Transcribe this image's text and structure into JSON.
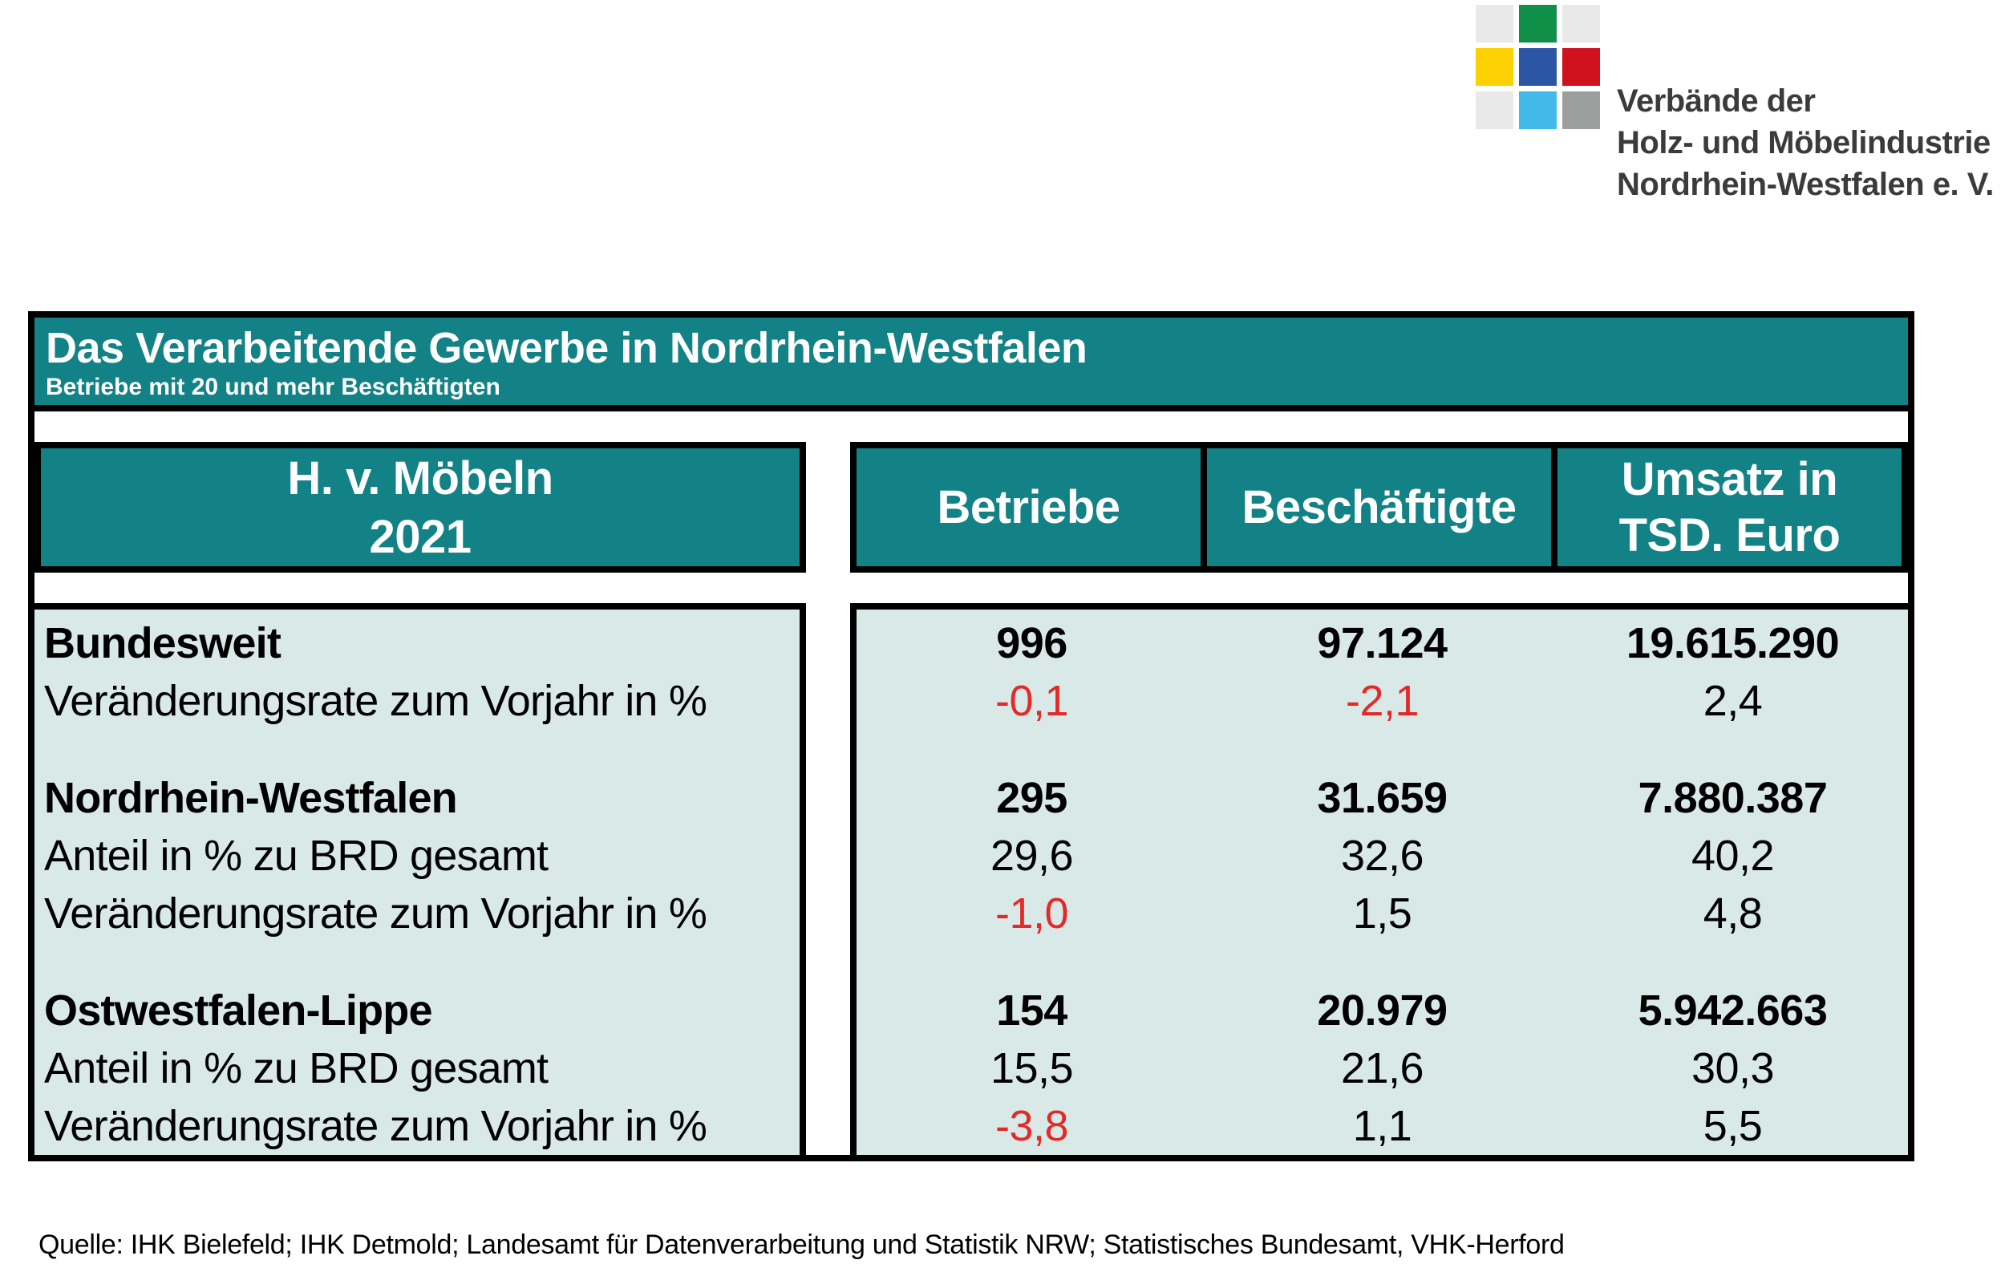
{
  "theme": {
    "teal": "#128286",
    "mint": "#d9e9e8",
    "negative_red": "#e32a26",
    "border_black": "#000000",
    "logo_text_color": "#3b3b3a"
  },
  "logo": {
    "squares": [
      {
        "name": "light-gray",
        "color": "#e9e9e9"
      },
      {
        "name": "green",
        "color": "#0f8f47"
      },
      {
        "name": "light-gray",
        "color": "#e9e9e9"
      },
      {
        "name": "yellow",
        "color": "#fdd101"
      },
      {
        "name": "blue",
        "color": "#2c56a5"
      },
      {
        "name": "red",
        "color": "#d2111f"
      },
      {
        "name": "light-gray",
        "color": "#e9e9e9"
      },
      {
        "name": "cyan",
        "color": "#41b9e9"
      },
      {
        "name": "gray",
        "color": "#9d9e9e"
      }
    ],
    "org_lines": [
      "Verbände der",
      "Holz- und Möbelindustrie",
      "Nordrhein-Westfalen e. V."
    ]
  },
  "table": {
    "title": "Das Verarbeitende Gewerbe in Nordrhein-Westfalen",
    "subtitle": "Betriebe mit 20 und mehr Beschäftigten",
    "row_header": {
      "line1": "H. v. Möbeln",
      "line2": "2021"
    },
    "columns": [
      "Betriebe",
      "Beschäftigte",
      "Umsatz in\nTSD. Euro"
    ],
    "rows": [
      {
        "label": "Bundesweit",
        "values": [
          "996",
          "97.124",
          "19.615.290"
        ]
      },
      {
        "label": "Veränderungsrate zum Vorjahr in %",
        "values": [
          "-0,1",
          "-2,1",
          "2,4"
        ]
      },
      {
        "label": "Nordrhein-Westfalen",
        "values": [
          "295",
          "31.659",
          "7.880.387"
        ]
      },
      {
        "label": "Anteil in % zu BRD gesamt",
        "values": [
          "29,6",
          "32,6",
          "40,2"
        ]
      },
      {
        "label": "Veränderungsrate zum Vorjahr in %",
        "values": [
          "-1,0",
          "1,5",
          "4,8"
        ]
      },
      {
        "label": "Ostwestfalen-Lippe",
        "values": [
          "154",
          "20.979",
          "5.942.663"
        ]
      },
      {
        "label": "Anteil in % zu BRD gesamt",
        "values": [
          "15,5",
          "21,6",
          "30,3"
        ]
      },
      {
        "label": "Veränderungsrate zum Vorjahr in %",
        "values": [
          "-3,8",
          "1,1",
          "5,5"
        ]
      }
    ]
  },
  "footer": {
    "text": "Quelle: IHK Bielefeld; IHK Detmold; Landesamt für Datenverarbeitung und Statistik NRW; Statistisches Bundesamt, VHK-Herford"
  },
  "chart_data": {
    "type": "table",
    "title": "Das Verarbeitende Gewerbe in Nordrhein-Westfalen — H. v. Möbeln 2021",
    "columns": [
      "Betriebe",
      "Beschäftigte",
      "Umsatz in TSD. Euro"
    ],
    "rows": [
      {
        "region": "Bundesweit",
        "Betriebe": 996,
        "Beschäftigte": 97124,
        "Umsatz_TSD_Euro": 19615290,
        "Veraenderungsrate_Vorjahr_prozent": [
          -0.1,
          -2.1,
          2.4
        ]
      },
      {
        "region": "Nordrhein-Westfalen",
        "Betriebe": 295,
        "Beschäftigte": 31659,
        "Umsatz_TSD_Euro": 7880387,
        "Anteil_BRD_prozent": [
          29.6,
          32.6,
          40.2
        ],
        "Veraenderungsrate_Vorjahr_prozent": [
          -1.0,
          1.5,
          4.8
        ]
      },
      {
        "region": "Ostwestfalen-Lippe",
        "Betriebe": 154,
        "Beschäftigte": 20979,
        "Umsatz_TSD_Euro": 5942663,
        "Anteil_BRD_prozent": [
          15.5,
          21.6,
          30.3
        ],
        "Veraenderungsrate_Vorjahr_prozent": [
          -3.8,
          1.1,
          5.5
        ]
      }
    ]
  }
}
